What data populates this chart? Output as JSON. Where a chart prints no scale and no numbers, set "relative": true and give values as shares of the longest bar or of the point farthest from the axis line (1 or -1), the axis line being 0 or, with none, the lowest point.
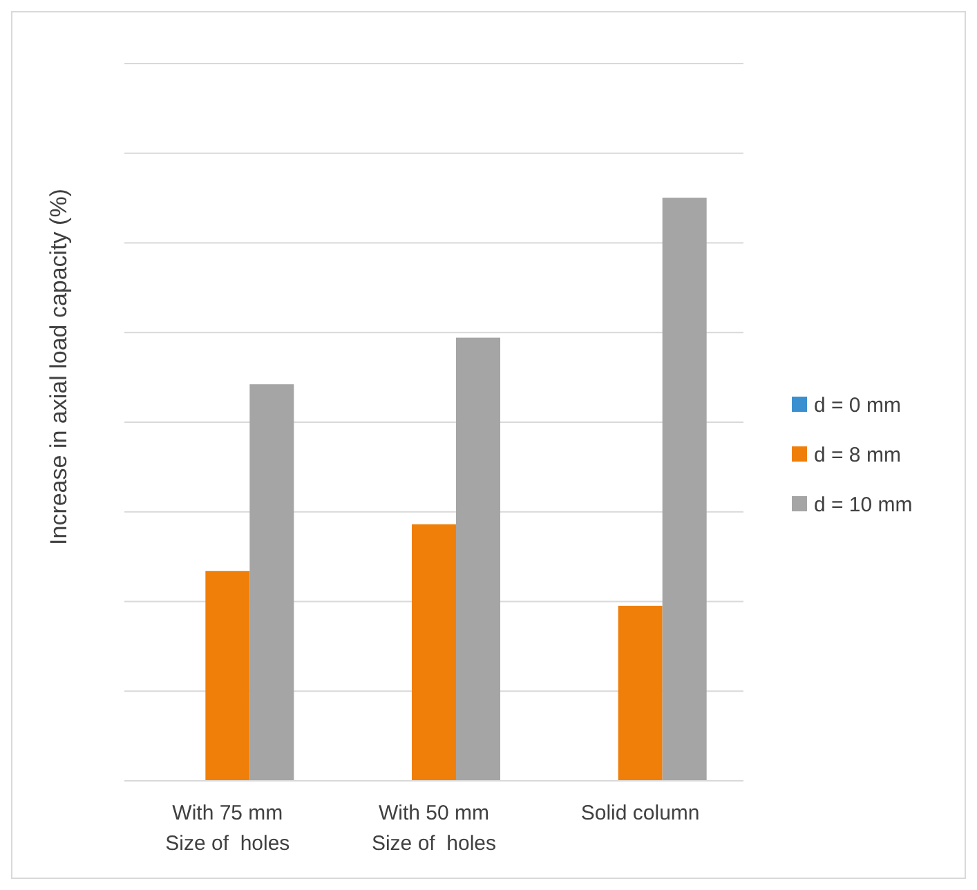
{
  "chart_data": {
    "type": "bar",
    "ylabel": "Increase in axial load capacity (%)",
    "categories": [
      "With 75 mm\nSize of  holes",
      "With 50 mm\nSize of  holes",
      "Solid column"
    ],
    "relative": true,
    "grid": "y",
    "legend": "right",
    "series": [
      {
        "name": "d = 0 mm",
        "color": "#3a8fd0",
        "values": [
          0,
          0,
          0
        ]
      },
      {
        "name": "d = 8 mm",
        "color": "#f07f09",
        "values": [
          0.36,
          0.44,
          0.3
        ]
      },
      {
        "name": "d = 10 mm",
        "color": "#a5a5a5",
        "values": [
          0.68,
          0.76,
          1.0
        ]
      }
    ]
  }
}
